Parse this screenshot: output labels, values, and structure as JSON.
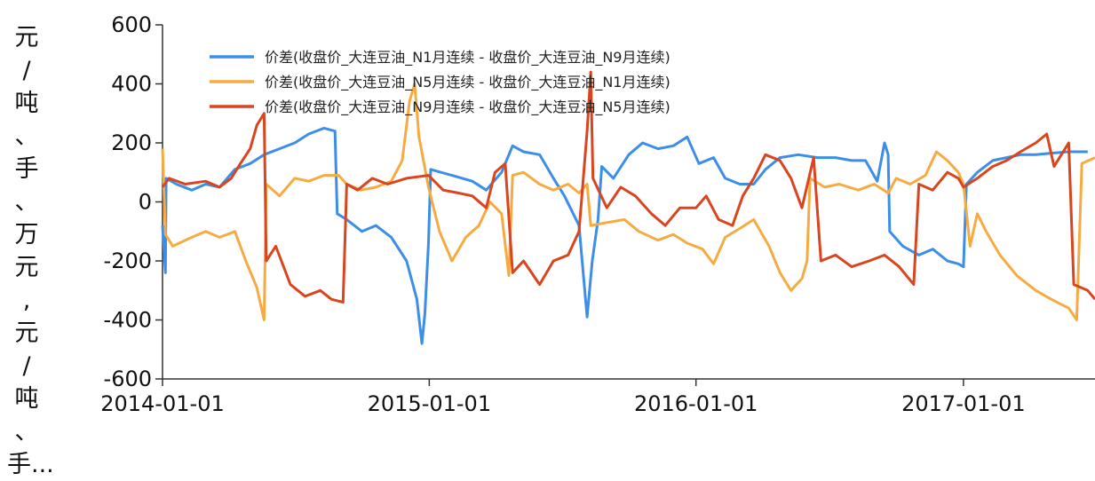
{
  "chart_data": {
    "type": "line",
    "ylabel": "元/吨、手、万元,元/吨、手...",
    "ylabel_lines": [
      "元",
      "/",
      "吨",
      "、",
      "手",
      "、",
      "万",
      "元",
      ",",
      "元",
      "/",
      "吨",
      "、",
      "手..."
    ],
    "ylim": [
      -600,
      600
    ],
    "yticks": [
      "600",
      "400",
      "200",
      "0",
      "-200",
      "-400",
      "-600"
    ],
    "xlim": [
      "2014-01-01",
      "2017-06-30"
    ],
    "xticks": [
      "2014-01-01",
      "2015-01-01",
      "2016-01-01",
      "2017-01-01"
    ],
    "grid": false,
    "legend_position": "top-center",
    "series": [
      {
        "name": "价差(收盘价_大连豆油_N1月连续 - 收盘价_大连豆油_N9月连续)",
        "color": "#3c8ee8",
        "points": [
          [
            "2014-01-01",
            -80
          ],
          [
            "2014-01-05",
            -240
          ],
          [
            "2014-01-06",
            80
          ],
          [
            "2014-01-20",
            60
          ],
          [
            "2014-02-10",
            40
          ],
          [
            "2014-03-01",
            60
          ],
          [
            "2014-03-20",
            50
          ],
          [
            "2014-04-10",
            110
          ],
          [
            "2014-05-01",
            130
          ],
          [
            "2014-05-20",
            160
          ],
          [
            "2014-06-10",
            180
          ],
          [
            "2014-07-01",
            200
          ],
          [
            "2014-07-20",
            230
          ],
          [
            "2014-08-10",
            250
          ],
          [
            "2014-08-25",
            240
          ],
          [
            "2014-08-28",
            -40
          ],
          [
            "2014-09-10",
            -60
          ],
          [
            "2014-10-01",
            -100
          ],
          [
            "2014-10-20",
            -80
          ],
          [
            "2014-11-10",
            -120
          ],
          [
            "2014-12-01",
            -200
          ],
          [
            "2014-12-15",
            -330
          ],
          [
            "2014-12-22",
            -480
          ],
          [
            "2014-12-26",
            -380
          ],
          [
            "2014-12-31",
            -140
          ],
          [
            "2015-01-03",
            110
          ],
          [
            "2015-02-01",
            90
          ],
          [
            "2015-03-01",
            70
          ],
          [
            "2015-03-20",
            40
          ],
          [
            "2015-04-10",
            100
          ],
          [
            "2015-04-25",
            190
          ],
          [
            "2015-05-10",
            170
          ],
          [
            "2015-06-01",
            160
          ],
          [
            "2015-06-20",
            80
          ],
          [
            "2015-07-05",
            20
          ],
          [
            "2015-07-25",
            -80
          ],
          [
            "2015-08-05",
            -390
          ],
          [
            "2015-08-12",
            -200
          ],
          [
            "2015-08-20",
            -60
          ],
          [
            "2015-08-25",
            120
          ],
          [
            "2015-09-10",
            80
          ],
          [
            "2015-10-01",
            160
          ],
          [
            "2015-10-20",
            200
          ],
          [
            "2015-11-10",
            180
          ],
          [
            "2015-12-01",
            190
          ],
          [
            "2015-12-20",
            220
          ],
          [
            "2016-01-05",
            130
          ],
          [
            "2016-01-25",
            150
          ],
          [
            "2016-02-10",
            80
          ],
          [
            "2016-03-01",
            60
          ],
          [
            "2016-03-20",
            60
          ],
          [
            "2016-04-05",
            110
          ],
          [
            "2016-04-25",
            150
          ],
          [
            "2016-05-20",
            160
          ],
          [
            "2016-06-15",
            150
          ],
          [
            "2016-07-10",
            150
          ],
          [
            "2016-08-01",
            140
          ],
          [
            "2016-08-20",
            140
          ],
          [
            "2016-09-05",
            70
          ],
          [
            "2016-09-15",
            200
          ],
          [
            "2016-09-20",
            160
          ],
          [
            "2016-09-22",
            -100
          ],
          [
            "2016-10-10",
            -150
          ],
          [
            "2016-11-01",
            -180
          ],
          [
            "2016-11-20",
            -160
          ],
          [
            "2016-12-10",
            -200
          ],
          [
            "2016-12-25",
            -210
          ],
          [
            "2017-01-01",
            -220
          ],
          [
            "2017-01-05",
            60
          ],
          [
            "2017-01-20",
            100
          ],
          [
            "2017-02-10",
            140
          ],
          [
            "2017-03-01",
            150
          ],
          [
            "2017-03-20",
            160
          ],
          [
            "2017-04-10",
            160
          ],
          [
            "2017-05-01",
            165
          ],
          [
            "2017-05-25",
            170
          ],
          [
            "2017-06-20",
            170
          ]
        ]
      },
      {
        "name": "价差(收盘价_大连豆油_N5月连续 - 收盘价_大连豆油_N1月连续)",
        "color": "#f6ab42",
        "points": [
          [
            "2014-01-01",
            180
          ],
          [
            "2014-01-05",
            -110
          ],
          [
            "2014-01-15",
            -150
          ],
          [
            "2014-02-10",
            -120
          ],
          [
            "2014-03-01",
            -100
          ],
          [
            "2014-03-20",
            -120
          ],
          [
            "2014-04-10",
            -100
          ],
          [
            "2014-04-25",
            -200
          ],
          [
            "2014-05-10",
            -290
          ],
          [
            "2014-05-20",
            -400
          ],
          [
            "2014-05-23",
            60
          ],
          [
            "2014-06-10",
            20
          ],
          [
            "2014-07-01",
            80
          ],
          [
            "2014-07-20",
            70
          ],
          [
            "2014-08-10",
            90
          ],
          [
            "2014-08-30",
            90
          ],
          [
            "2014-09-10",
            60
          ],
          [
            "2014-09-30",
            40
          ],
          [
            "2014-10-20",
            50
          ],
          [
            "2014-11-10",
            70
          ],
          [
            "2014-11-25",
            140
          ],
          [
            "2014-12-05",
            340
          ],
          [
            "2014-12-12",
            400
          ],
          [
            "2014-12-18",
            220
          ],
          [
            "2014-12-31",
            50
          ],
          [
            "2015-01-15",
            -100
          ],
          [
            "2015-02-01",
            -200
          ],
          [
            "2015-02-20",
            -120
          ],
          [
            "2015-03-10",
            -80
          ],
          [
            "2015-03-25",
            0
          ],
          [
            "2015-04-10",
            -40
          ],
          [
            "2015-04-20",
            -250
          ],
          [
            "2015-04-25",
            90
          ],
          [
            "2015-05-10",
            100
          ],
          [
            "2015-06-01",
            60
          ],
          [
            "2015-06-20",
            40
          ],
          [
            "2015-07-10",
            60
          ],
          [
            "2015-07-25",
            30
          ],
          [
            "2015-08-05",
            60
          ],
          [
            "2015-08-10",
            -80
          ],
          [
            "2015-09-01",
            -70
          ],
          [
            "2015-09-25",
            -60
          ],
          [
            "2015-10-15",
            -100
          ],
          [
            "2015-11-10",
            -130
          ],
          [
            "2015-12-01",
            -110
          ],
          [
            "2015-12-20",
            -140
          ],
          [
            "2016-01-10",
            -160
          ],
          [
            "2016-01-25",
            -210
          ],
          [
            "2016-02-10",
            -120
          ],
          [
            "2016-03-01",
            -90
          ],
          [
            "2016-03-20",
            -60
          ],
          [
            "2016-04-10",
            -150
          ],
          [
            "2016-04-25",
            -240
          ],
          [
            "2016-05-10",
            -300
          ],
          [
            "2016-05-25",
            -260
          ],
          [
            "2016-06-01",
            -200
          ],
          [
            "2016-06-05",
            80
          ],
          [
            "2016-06-25",
            50
          ],
          [
            "2016-07-15",
            60
          ],
          [
            "2016-08-10",
            40
          ],
          [
            "2016-09-01",
            60
          ],
          [
            "2016-09-20",
            30
          ],
          [
            "2016-10-01",
            80
          ],
          [
            "2016-10-20",
            60
          ],
          [
            "2016-11-10",
            90
          ],
          [
            "2016-11-25",
            170
          ],
          [
            "2016-12-10",
            140
          ],
          [
            "2016-12-25",
            100
          ],
          [
            "2017-01-01",
            60
          ],
          [
            "2017-01-10",
            -150
          ],
          [
            "2017-01-20",
            -40
          ],
          [
            "2017-02-01",
            -100
          ],
          [
            "2017-02-20",
            -180
          ],
          [
            "2017-03-15",
            -250
          ],
          [
            "2017-04-10",
            -300
          ],
          [
            "2017-05-01",
            -330
          ],
          [
            "2017-05-25",
            -360
          ],
          [
            "2017-06-05",
            -400
          ],
          [
            "2017-06-12",
            130
          ],
          [
            "2017-06-30",
            150
          ]
        ]
      },
      {
        "name": "价差(收盘价_大连豆油_N9月连续 - 收盘价_大连豆油_N5月连续)",
        "color": "#d8451f",
        "points": [
          [
            "2014-01-01",
            50
          ],
          [
            "2014-01-10",
            80
          ],
          [
            "2014-02-01",
            60
          ],
          [
            "2014-03-01",
            70
          ],
          [
            "2014-03-20",
            50
          ],
          [
            "2014-04-05",
            80
          ],
          [
            "2014-04-15",
            120
          ],
          [
            "2014-05-01",
            180
          ],
          [
            "2014-05-10",
            260
          ],
          [
            "2014-05-20",
            300
          ],
          [
            "2014-05-23",
            -200
          ],
          [
            "2014-06-05",
            -150
          ],
          [
            "2014-06-25",
            -280
          ],
          [
            "2014-07-15",
            -320
          ],
          [
            "2014-08-05",
            -300
          ],
          [
            "2014-08-20",
            -330
          ],
          [
            "2014-09-05",
            -340
          ],
          [
            "2014-09-10",
            60
          ],
          [
            "2014-09-25",
            40
          ],
          [
            "2014-10-15",
            80
          ],
          [
            "2014-11-05",
            60
          ],
          [
            "2014-12-01",
            80
          ],
          [
            "2014-12-31",
            90
          ],
          [
            "2015-01-20",
            40
          ],
          [
            "2015-02-10",
            30
          ],
          [
            "2015-03-01",
            20
          ],
          [
            "2015-03-20",
            -20
          ],
          [
            "2015-04-01",
            100
          ],
          [
            "2015-04-15",
            130
          ],
          [
            "2015-04-25",
            -240
          ],
          [
            "2015-05-10",
            -200
          ],
          [
            "2015-06-01",
            -280
          ],
          [
            "2015-06-20",
            -200
          ],
          [
            "2015-07-10",
            -180
          ],
          [
            "2015-07-25",
            -100
          ],
          [
            "2015-08-05",
            240
          ],
          [
            "2015-08-10",
            440
          ],
          [
            "2015-08-13",
            80
          ],
          [
            "2015-09-01",
            -20
          ],
          [
            "2015-09-20",
            50
          ],
          [
            "2015-10-10",
            20
          ],
          [
            "2015-11-01",
            -40
          ],
          [
            "2015-11-20",
            -80
          ],
          [
            "2015-12-10",
            -20
          ],
          [
            "2016-01-01",
            -20
          ],
          [
            "2016-01-15",
            20
          ],
          [
            "2016-02-01",
            -60
          ],
          [
            "2016-02-20",
            -80
          ],
          [
            "2016-03-05",
            20
          ],
          [
            "2016-03-20",
            80
          ],
          [
            "2016-04-05",
            160
          ],
          [
            "2016-04-25",
            140
          ],
          [
            "2016-05-10",
            80
          ],
          [
            "2016-05-25",
            -20
          ],
          [
            "2016-06-10",
            150
          ],
          [
            "2016-06-20",
            -200
          ],
          [
            "2016-07-10",
            -180
          ],
          [
            "2016-08-01",
            -220
          ],
          [
            "2016-08-25",
            -200
          ],
          [
            "2016-09-15",
            -180
          ],
          [
            "2016-10-05",
            -220
          ],
          [
            "2016-10-25",
            -280
          ],
          [
            "2016-11-01",
            60
          ],
          [
            "2016-11-20",
            40
          ],
          [
            "2016-12-10",
            100
          ],
          [
            "2016-12-25",
            80
          ],
          [
            "2017-01-01",
            50
          ],
          [
            "2017-01-20",
            80
          ],
          [
            "2017-02-10",
            120
          ],
          [
            "2017-03-01",
            140
          ],
          [
            "2017-03-20",
            170
          ],
          [
            "2017-04-10",
            200
          ],
          [
            "2017-04-25",
            230
          ],
          [
            "2017-05-05",
            120
          ],
          [
            "2017-05-15",
            160
          ],
          [
            "2017-05-25",
            200
          ],
          [
            "2017-06-01",
            -280
          ],
          [
            "2017-06-20",
            -300
          ],
          [
            "2017-06-30",
            -330
          ]
        ]
      }
    ]
  }
}
